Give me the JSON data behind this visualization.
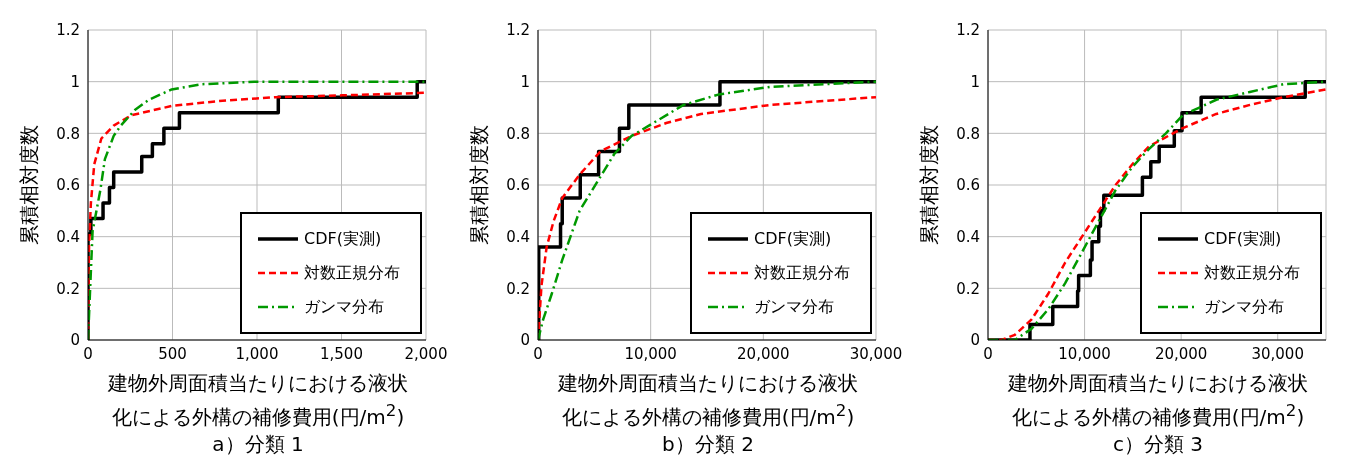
{
  "chart_data": [
    {
      "type": "line",
      "title": "a）分類 1",
      "xlabel": "建物外周面積当たりにおける液状化による外構の補修費用(円/m$^{2}$)",
      "ylabel": "累積相対度数",
      "xlim": [
        0,
        2000
      ],
      "xticks": [
        {
          "value": 0,
          "label": "0"
        },
        {
          "value": 500,
          "label": "500"
        },
        {
          "value": 1000,
          "label": "1,000"
        },
        {
          "value": 1500,
          "label": "1,500"
        },
        {
          "value": 2000,
          "label": "2,000"
        }
      ],
      "ylim": [
        0,
        1.2
      ],
      "yticks": [
        0,
        0.2,
        0.4,
        0.6,
        0.8,
        1,
        1.2
      ],
      "grid": true,
      "legend": "bottom right",
      "series": [
        {
          "name": "CDF(実測)",
          "type": "step",
          "color": "#000000",
          "line_style": "solid",
          "x": [
            0,
            0,
            17,
            89,
            127,
            152,
            318,
            381,
            449,
            541,
            1126,
            1948,
            2000
          ],
          "values": [
            0,
            0.41,
            0.47,
            0.53,
            0.59,
            0.65,
            0.71,
            0.76,
            0.82,
            0.88,
            0.94,
            1,
            1
          ]
        },
        {
          "name": "対数正規分布",
          "type": "line",
          "color": "#ff0000",
          "line_style": "dashed",
          "x": [
            0,
            6,
            17,
            37,
            79,
            152,
            256,
            495,
            776,
            1109,
            1505,
            2000
          ],
          "values": [
            0,
            0.36,
            0.53,
            0.68,
            0.78,
            0.83,
            0.87,
            0.906,
            0.925,
            0.94,
            0.947,
            0.957
          ]
        },
        {
          "name": "ガンマ分布",
          "type": "line",
          "color": "#009900",
          "line_style": "dashdot",
          "x": [
            0,
            27,
            73,
            100,
            152,
            194,
            277,
            360,
            495,
            672,
            984,
            2000
          ],
          "values": [
            0,
            0.42,
            0.58,
            0.7,
            0.79,
            0.83,
            0.89,
            0.93,
            0.97,
            0.99,
            1,
            1
          ]
        }
      ]
    },
    {
      "type": "line",
      "title": "b）分類 2",
      "xlabel": "建物外周面積当たりにおける液状化による外構の補修費用(円/m$^{2}$)",
      "ylabel": "累積相対度数",
      "xlim": [
        0,
        30000
      ],
      "xticks": [
        {
          "value": 0,
          "label": "0"
        },
        {
          "value": 10000,
          "label": "10,000"
        },
        {
          "value": 20000,
          "label": "20,000"
        },
        {
          "value": 30000,
          "label": "30,000"
        }
      ],
      "ylim": [
        0,
        1.2
      ],
      "yticks": [
        0,
        0.2,
        0.4,
        0.6,
        0.8,
        1,
        1.2
      ],
      "grid": true,
      "legend": "bottom right",
      "series": [
        {
          "name": "CDF(実測)",
          "type": "step",
          "color": "#000000",
          "line_style": "solid",
          "x": [
            0,
            62,
            2000,
            2150,
            3750,
            5380,
            7230,
            8060,
            16150,
            30000
          ],
          "values": [
            0,
            0.36,
            0.45,
            0.55,
            0.64,
            0.73,
            0.82,
            0.91,
            1,
            1
          ]
        },
        {
          "name": "対数正規分布",
          "type": "line",
          "color": "#ff0000",
          "line_style": "dashed",
          "x": [
            0,
            308,
            769,
            1385,
            2154,
            3692,
            5538,
            8308,
            11385,
            14462,
            20615,
            30000
          ],
          "values": [
            0,
            0.21,
            0.36,
            0.46,
            0.55,
            0.64,
            0.73,
            0.79,
            0.84,
            0.875,
            0.91,
            0.94
          ]
        },
        {
          "name": "ガンマ分布",
          "type": "line",
          "color": "#009900",
          "line_style": "dashdot",
          "x": [
            0,
            462,
            1231,
            2154,
            3692,
            5231,
            6769,
            8308,
            9846,
            12923,
            16000,
            20615,
            30000
          ],
          "values": [
            0,
            0.08,
            0.18,
            0.31,
            0.5,
            0.61,
            0.72,
            0.79,
            0.83,
            0.91,
            0.95,
            0.98,
            1
          ]
        }
      ]
    },
    {
      "type": "line",
      "title": "c）分類 3",
      "xlabel": "建物外周面積当たりにおける液状化による外構の補修費用(円/m$^{2}$)",
      "ylabel": "累積相対度数",
      "xlim": [
        0,
        35000
      ],
      "xticks": [
        {
          "value": 0,
          "label": "0"
        },
        {
          "value": 10000,
          "label": "10,000"
        },
        {
          "value": 20000,
          "label": "20,000"
        },
        {
          "value": 30000,
          "label": "30,000"
        }
      ],
      "ylim": [
        0,
        1.2
      ],
      "yticks": [
        0,
        0.2,
        0.4,
        0.6,
        0.8,
        1,
        1.2
      ],
      "grid": true,
      "legend": "bottom right",
      "series": [
        {
          "name": "CDF(実測)",
          "type": "step",
          "color": "#000000",
          "line_style": "solid",
          "x": [
            0,
            4345,
            6708,
            9280,
            9385,
            10601,
            10775,
            11470,
            11644,
            11992,
            15989,
            16858,
            17727,
            19291,
            20090,
            22072,
            32847,
            35000
          ],
          "values": [
            0,
            0.06,
            0.13,
            0.19,
            0.25,
            0.31,
            0.38,
            0.44,
            0.5,
            0.56,
            0.63,
            0.69,
            0.75,
            0.81,
            0.88,
            0.94,
            1,
            1
          ]
        },
        {
          "name": "対数正規分布",
          "type": "line",
          "color": "#ff0000",
          "line_style": "dashed",
          "x": [
            0,
            1390,
            2781,
            4519,
            6256,
            7994,
            9732,
            11470,
            13208,
            14946,
            16684,
            20160,
            23636,
            27112,
            30588,
            35000
          ],
          "values": [
            0,
            0,
            0.02,
            0.08,
            0.18,
            0.3,
            0.4,
            0.5,
            0.6,
            0.68,
            0.75,
            0.82,
            0.875,
            0.91,
            0.94,
            0.97
          ]
        },
        {
          "name": "ガンマ分布",
          "type": "line",
          "color": "#009900",
          "line_style": "dashdot",
          "x": [
            0,
            2781,
            4519,
            6256,
            7994,
            9732,
            11470,
            13208,
            14946,
            16684,
            18422,
            20160,
            23636,
            27112,
            30588,
            35000
          ],
          "values": [
            0,
            0,
            0.044,
            0.12,
            0.22,
            0.34,
            0.46,
            0.58,
            0.67,
            0.74,
            0.8,
            0.87,
            0.93,
            0.96,
            0.99,
            1
          ]
        }
      ]
    }
  ]
}
